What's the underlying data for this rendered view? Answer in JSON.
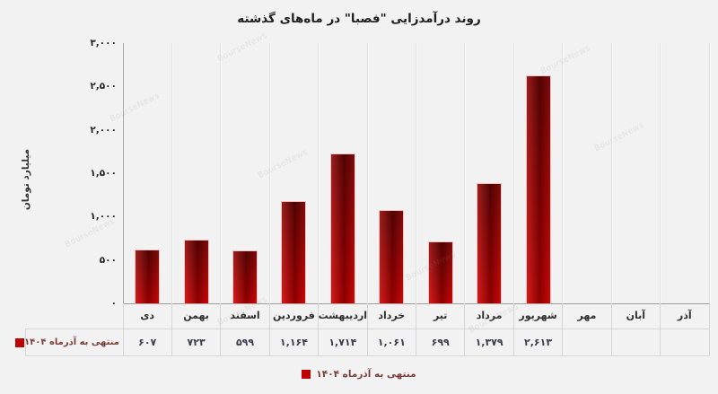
{
  "title": "روند درآمدزایی \"فصبا\" در ماه‌های گذشته",
  "watermark": "BourseNews",
  "colors": {
    "bar_bright": "#c40000",
    "bar_dark": "#6e0404",
    "legend_key": "#c00000",
    "background": "#f2f2f2"
  },
  "y_axis": {
    "title": "میلیارد تومان",
    "ticks": [
      "۳,۰۰۰",
      "۲,۵۰۰",
      "۲,۰۰۰",
      "۱,۵۰۰",
      "۱,۰۰۰",
      "۵۰۰",
      "۰"
    ],
    "tick_values": [
      3000,
      2500,
      2000,
      1500,
      1000,
      500,
      0
    ]
  },
  "legend": {
    "label": "منتهی به آذرماه ۱۴۰۴"
  },
  "table": {
    "row_header": "منتهی به آذرماه ۱۴۰۴"
  },
  "chart_data": {
    "type": "bar",
    "title": "روند درآمدزایی \"فصبا\" در ماه‌های گذشته",
    "ylabel": "میلیارد تومان",
    "ylim": [
      0,
      3000
    ],
    "grid": "vertical-category-lines",
    "legend_position": "bottom",
    "series_name": "منتهی به آذرماه ۱۴۰۴",
    "categories": [
      "دی",
      "بهمن",
      "اسفند",
      "فروردین",
      "اردیبهشت",
      "خرداد",
      "تیر",
      "مرداد",
      "شهریور",
      "مهر",
      "آبان",
      "آذر"
    ],
    "values": [
      607,
      723,
      599,
      1164,
      1714,
      1061,
      699,
      1379,
      2613,
      null,
      null,
      null
    ],
    "value_labels": [
      "۶۰۷",
      "۷۲۳",
      "۵۹۹",
      "۱,۱۶۴",
      "۱,۷۱۴",
      "۱,۰۶۱",
      "۶۹۹",
      "۱,۳۷۹",
      "۲,۶۱۳",
      "",
      "",
      ""
    ]
  }
}
